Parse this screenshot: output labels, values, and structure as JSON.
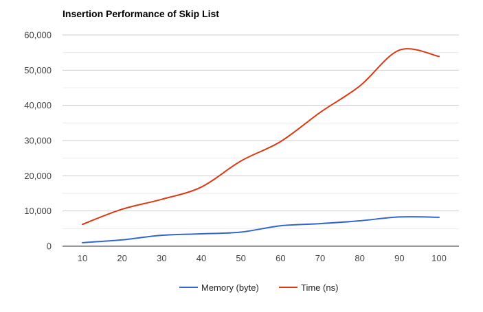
{
  "chart_data": {
    "type": "line",
    "title": "Insertion Performance of Skip List",
    "xlabel": "",
    "ylabel": "",
    "x": [
      10,
      20,
      30,
      40,
      50,
      60,
      70,
      80,
      90,
      100
    ],
    "ylim": [
      0,
      60000
    ],
    "y_ticks": [
      "0",
      "10,000",
      "20,000",
      "30,000",
      "40,000",
      "50,000",
      "60,000"
    ],
    "y_tick_values": [
      0,
      10000,
      20000,
      30000,
      40000,
      50000,
      60000
    ],
    "x_ticks": [
      "10",
      "20",
      "30",
      "40",
      "50",
      "60",
      "70",
      "80",
      "90",
      "100"
    ],
    "grid": true,
    "legend_position": "bottom",
    "smooth": true,
    "series": [
      {
        "name": "Memory (byte)",
        "color": "#3366cc",
        "values": [
          1000,
          1800,
          3100,
          3500,
          4000,
          5800,
          6400,
          7200,
          8300,
          8200
        ]
      },
      {
        "name": "Time (ns)",
        "color": "#dc3912",
        "values": [
          6200,
          10500,
          13300,
          16800,
          24200,
          29700,
          38000,
          45500,
          55700,
          53900
        ]
      }
    ]
  }
}
